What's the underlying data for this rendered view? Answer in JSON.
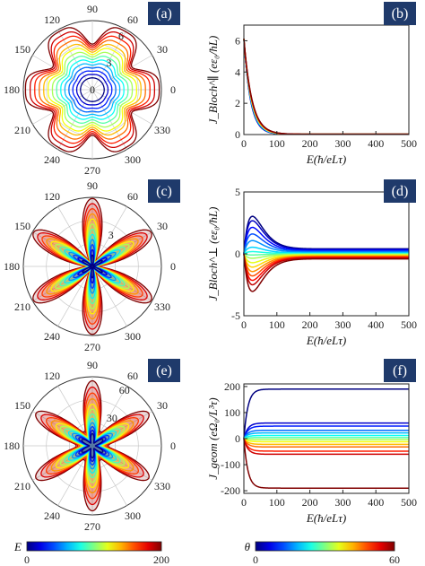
{
  "figure": {
    "colors": {
      "panel_label_bg": "#1f3a6b",
      "panel_label_text": "#ffffff"
    },
    "colorbars": [
      {
        "id": "E",
        "label": "E",
        "min_label": "0",
        "max_label": "200",
        "colormap": "jet"
      },
      {
        "id": "theta",
        "label": "θ",
        "min_label": "0",
        "max_label": "60",
        "colormap": "jet"
      }
    ]
  },
  "chart_data": [
    {
      "id": "a",
      "panel_label": "(a)",
      "type": "polar",
      "angle_ticks": [
        "0",
        "30",
        "60",
        "90",
        "120",
        "150",
        "180",
        "210",
        "240",
        "270",
        "300",
        "330"
      ],
      "radial_ticks": [
        "3",
        "6"
      ],
      "origin_label": "0",
      "rmax": 7,
      "curves": {
        "variable": "E",
        "range": [
          0,
          200
        ],
        "count": 14,
        "r_base": [
          1.2,
          6.0
        ],
        "modulation": 0.18,
        "symmetry": 6,
        "shape": "rosette"
      }
    },
    {
      "id": "b",
      "panel_label": "(b)",
      "type": "line",
      "xlabel": "E(ħ/eLτ)",
      "ylabel": "J_Bloch^∥ (eε₀/ħL)",
      "xlim": [
        0,
        500
      ],
      "ylim": [
        0,
        7
      ],
      "xticks": [
        "0",
        "100",
        "200",
        "300",
        "400",
        "500"
      ],
      "yticks": [
        "0",
        "2",
        "4",
        "6"
      ],
      "series_family": {
        "variable": "θ",
        "range": [
          0,
          60
        ],
        "count": 10,
        "model": "decay",
        "peak": 6.1,
        "scale": 22
      }
    },
    {
      "id": "c",
      "panel_label": "(c)",
      "type": "polar",
      "angle_ticks": [
        "0",
        "30",
        "60",
        "90",
        "120",
        "150",
        "180",
        "210",
        "240",
        "270",
        "300",
        "330"
      ],
      "radial_ticks": [
        "3"
      ],
      "rmax": 6,
      "curves": {
        "variable": "E",
        "range": [
          0,
          200
        ],
        "count": 12,
        "r_base": [
          1.0,
          5.9
        ],
        "symmetry": 6,
        "shape": "petal"
      }
    },
    {
      "id": "d",
      "panel_label": "(d)",
      "type": "line",
      "xlabel": "E(ħ/eLτ)",
      "ylabel": "J_Bloch^⊥ (eε₀/ħL)",
      "xlim": [
        0,
        500
      ],
      "ylim": [
        -5,
        5
      ],
      "xticks": [
        "0",
        "100",
        "200",
        "300",
        "400",
        "500"
      ],
      "yticks": [
        "-5",
        "0",
        "5"
      ],
      "series_family": {
        "variable": "θ",
        "range": [
          0,
          60
        ],
        "count": 16,
        "model": "peaked",
        "peaks": [
          3.4,
          3.0,
          2.4,
          1.8,
          1.2,
          0.6,
          0.2,
          -0.1,
          -0.4,
          -0.8,
          -1.2,
          -1.6,
          -2.0,
          -2.4,
          -2.8,
          -3.4
        ]
      }
    },
    {
      "id": "e",
      "panel_label": "(e)",
      "type": "polar",
      "angle_ticks": [
        "0",
        "30",
        "60",
        "90",
        "120",
        "150",
        "180",
        "210",
        "240",
        "270",
        "300",
        "330"
      ],
      "radial_ticks": [
        "30",
        "60"
      ],
      "rmax": 68,
      "curves": {
        "variable": "E",
        "range": [
          0,
          200
        ],
        "count": 12,
        "r_base": [
          20,
          64
        ],
        "symmetry": 6,
        "shape": "star"
      }
    },
    {
      "id": "f",
      "panel_label": "(f)",
      "type": "line",
      "xlabel": "E(ħ/eLτ)",
      "ylabel": "J_geom (eΩ₀/L³τ)",
      "xlim": [
        0,
        500
      ],
      "ylim": [
        -210,
        210
      ],
      "xticks": [
        "0",
        "100",
        "200",
        "300",
        "400",
        "500"
      ],
      "yticks": [
        "-200",
        "-100",
        "0",
        "100",
        "200"
      ],
      "series_family": {
        "variable": "θ",
        "range": [
          0,
          60
        ],
        "count": 14,
        "model": "saturating",
        "plateaus": [
          190,
          60,
          48,
          32,
          22,
          12,
          4,
          -4,
          -12,
          -22,
          -32,
          -48,
          -60,
          -190
        ]
      }
    }
  ]
}
